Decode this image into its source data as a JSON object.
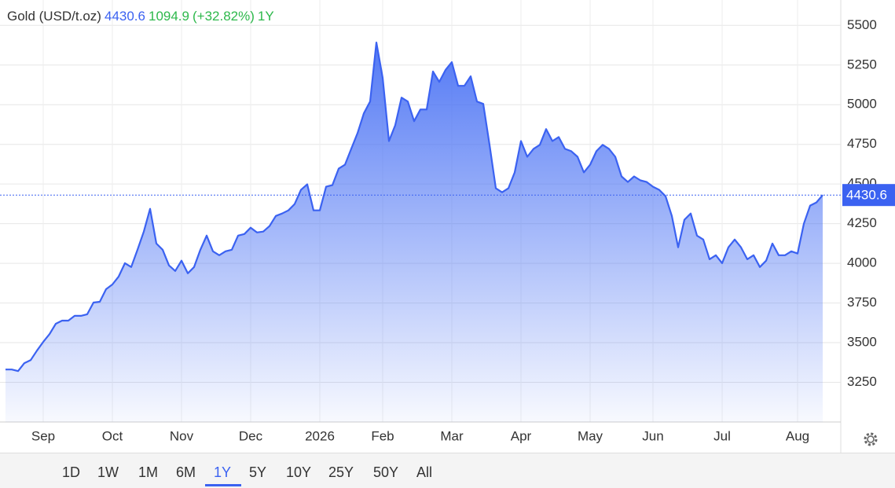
{
  "chart_data": {
    "type": "area",
    "title": "Gold (USD/t.oz)",
    "period": "1Y",
    "change": 1094.9,
    "change_percent": {
      "value": 32.82,
      "label": "(+32.82%)"
    },
    "color": "#3b62f1",
    "grid": true,
    "ylim": [
      3000,
      5660
    ],
    "yticks": [
      3250,
      3500,
      3750,
      4000,
      4250,
      4500,
      4750,
      5000,
      5250,
      5500
    ],
    "categories": [
      null,
      null,
      null,
      null,
      null,
      null,
      "Sep",
      null,
      null,
      null,
      null,
      null,
      null,
      null,
      null,
      null,
      null,
      "Oct",
      null,
      null,
      null,
      null,
      null,
      null,
      null,
      null,
      null,
      null,
      "Nov",
      null,
      null,
      null,
      null,
      null,
      null,
      null,
      null,
      null,
      null,
      "Dec",
      null,
      null,
      null,
      null,
      null,
      null,
      null,
      null,
      null,
      null,
      "2026",
      null,
      null,
      null,
      null,
      null,
      null,
      null,
      null,
      null,
      "Feb",
      null,
      null,
      null,
      null,
      null,
      null,
      null,
      null,
      null,
      null,
      "Mar",
      null,
      null,
      null,
      null,
      null,
      null,
      null,
      null,
      null,
      null,
      "Apr",
      null,
      null,
      null,
      null,
      null,
      null,
      null,
      null,
      null,
      null,
      "May",
      null,
      null,
      null,
      null,
      null,
      null,
      null,
      null,
      null,
      "Jun",
      null,
      null,
      null,
      null,
      null,
      null,
      null,
      null,
      null,
      null,
      "Jul",
      null,
      null,
      null,
      null,
      null,
      null,
      null,
      null,
      null,
      null,
      null,
      "Aug",
      null,
      null,
      null,
      null
    ],
    "values": [
      3331,
      3331,
      3321,
      3371,
      3390,
      3450,
      3505,
      3554,
      3619,
      3639,
      3639,
      3669,
      3669,
      3679,
      3753,
      3758,
      3837,
      3867,
      3917,
      4001,
      3977,
      4086,
      4200,
      4344,
      4125,
      4086,
      3987,
      3952,
      4017,
      3937,
      3977,
      4086,
      4175,
      4076,
      4051,
      4076,
      4086,
      4175,
      4185,
      4225,
      4195,
      4200,
      4235,
      4299,
      4314,
      4334,
      4374,
      4463,
      4498,
      4334,
      4334,
      4483,
      4493,
      4597,
      4622,
      4722,
      4821,
      4945,
      5020,
      5392,
      5169,
      4771,
      4871,
      5045,
      5020,
      4896,
      4970,
      4970,
      5209,
      5144,
      5219,
      5268,
      5119,
      5119,
      5179,
      5020,
      5005,
      4747,
      4473,
      4448,
      4473,
      4573,
      4771,
      4672,
      4722,
      4747,
      4846,
      4771,
      4796,
      4722,
      4707,
      4672,
      4573,
      4622,
      4707,
      4747,
      4722,
      4672,
      4548,
      4513,
      4548,
      4523,
      4513,
      4483,
      4463,
      4423,
      4299,
      4101,
      4275,
      4314,
      4175,
      4150,
      4026,
      4051,
      4001,
      4101,
      4150,
      4101,
      4026,
      4051,
      3977,
      4017,
      4125,
      4051,
      4051,
      4076,
      4062,
      4250,
      4364,
      4384,
      4430.6
    ]
  },
  "range_buttons": [
    "1D",
    "1W",
    "1M",
    "6M",
    "1Y",
    "5Y",
    "10Y",
    "25Y",
    "50Y",
    "All"
  ]
}
